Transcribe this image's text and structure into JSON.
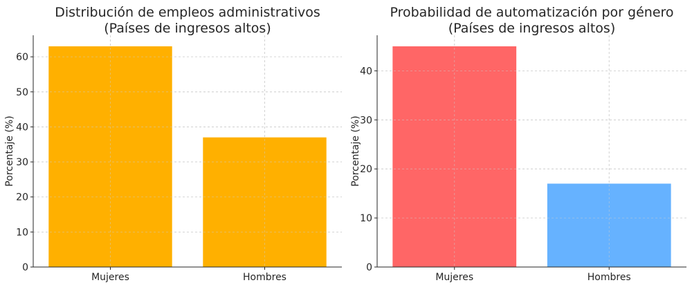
{
  "chart_data": [
    {
      "type": "bar",
      "title_lines": [
        "Distribución de empleos administrativos",
        "(Países de ingresos altos)"
      ],
      "xlabel": "",
      "ylabel": "Porcentaje (%)",
      "categories": [
        "Mujeres",
        "Hombres"
      ],
      "values": [
        63,
        37
      ],
      "colors": [
        "#FFB000",
        "#FFB000"
      ],
      "ylim": [
        0,
        66.15
      ],
      "yticks": [
        0,
        10,
        20,
        30,
        40,
        50,
        60
      ],
      "grid": true
    },
    {
      "type": "bar",
      "title_lines": [
        "Probabilidad de automatización por género",
        "(Países de ingresos altos)"
      ],
      "xlabel": "",
      "ylabel": "Porcentaje (%)",
      "categories": [
        "Mujeres",
        "Hombres"
      ],
      "values": [
        45,
        17
      ],
      "colors": [
        "#FF6666",
        "#66B2FF"
      ],
      "ylim": [
        0,
        47.25
      ],
      "yticks": [
        0,
        10,
        20,
        30,
        40
      ],
      "grid": true
    }
  ]
}
